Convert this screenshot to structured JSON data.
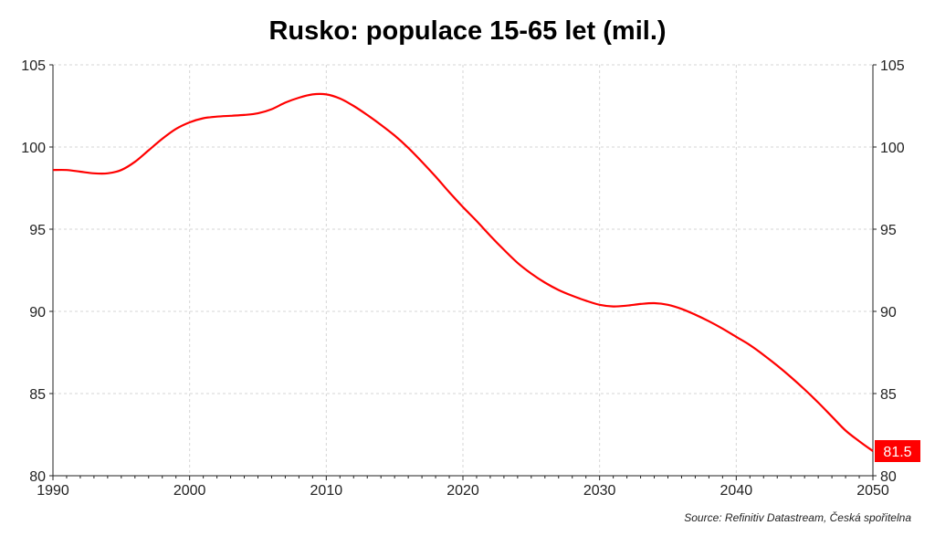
{
  "chart_data": {
    "type": "line",
    "title": "Rusko: populace 15-65 let (mil.)",
    "source": "Source: Refinitiv Datastream, Česká spořitelna",
    "xlim": [
      1990,
      2050
    ],
    "ylim": [
      80,
      105
    ],
    "x_ticks": [
      1990,
      2000,
      2010,
      2020,
      2030,
      2040,
      2050
    ],
    "y_ticks": [
      80,
      85,
      90,
      95,
      100,
      105
    ],
    "grid": true,
    "line_color": "#ff0000",
    "end_label": "81.5",
    "series": [
      {
        "x": [
          1990,
          1991,
          1992,
          1993,
          1994,
          1995,
          1996,
          1997,
          1998,
          1999,
          2000,
          2001,
          2002,
          2003,
          2004,
          2005,
          2006,
          2007,
          2008,
          2009,
          2010,
          2011,
          2012,
          2013,
          2014,
          2015,
          2016,
          2017,
          2018,
          2019,
          2020,
          2021,
          2022,
          2023,
          2024,
          2025,
          2026,
          2027,
          2028,
          2029,
          2030,
          2031,
          2032,
          2033,
          2034,
          2035,
          2036,
          2037,
          2038,
          2039,
          2040,
          2041,
          2042,
          2043,
          2044,
          2045,
          2046,
          2047,
          2048,
          2049,
          2050
        ],
        "values": [
          98.6,
          98.6,
          98.5,
          98.4,
          98.4,
          98.6,
          99.1,
          99.8,
          100.5,
          101.1,
          101.5,
          101.75,
          101.85,
          101.9,
          101.95,
          102.05,
          102.3,
          102.7,
          103.0,
          103.2,
          103.2,
          102.95,
          102.5,
          101.95,
          101.35,
          100.7,
          99.95,
          99.1,
          98.2,
          97.25,
          96.35,
          95.5,
          94.6,
          93.75,
          92.95,
          92.3,
          91.75,
          91.3,
          90.95,
          90.65,
          90.4,
          90.3,
          90.35,
          90.45,
          90.5,
          90.4,
          90.15,
          89.8,
          89.4,
          88.95,
          88.45,
          87.95,
          87.35,
          86.7,
          86.0,
          85.25,
          84.45,
          83.6,
          82.75,
          82.1,
          81.5
        ]
      }
    ]
  }
}
